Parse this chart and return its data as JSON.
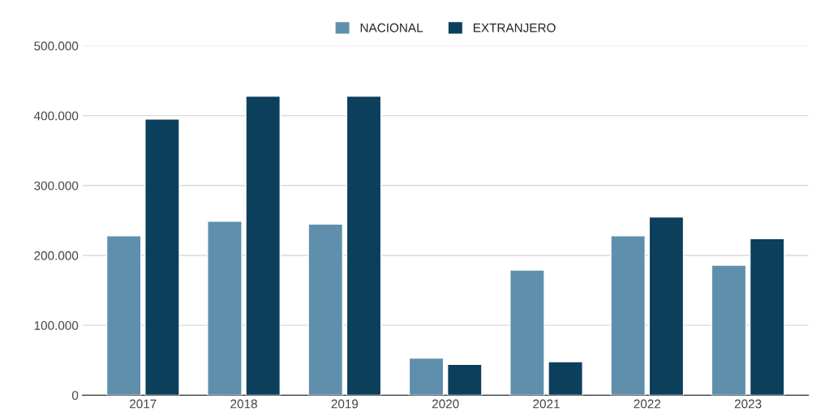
{
  "chart_data": {
    "type": "bar",
    "categories": [
      "2017",
      "2018",
      "2019",
      "2020",
      "2021",
      "2022",
      "2023"
    ],
    "series": [
      {
        "name": "NACIONAL",
        "color": "#5f8fac",
        "values": [
          228000,
          249000,
          245000,
          53000,
          179000,
          228000,
          186000
        ]
      },
      {
        "name": "EXTRANJERO",
        "color": "#0c3f5c",
        "values": [
          395000,
          428000,
          428000,
          44000,
          48000,
          255000,
          224000
        ]
      }
    ],
    "ylim": [
      0,
      500000
    ],
    "yticks": [
      {
        "value": 0,
        "label": "0"
      },
      {
        "value": 100000,
        "label": "100.000"
      },
      {
        "value": 200000,
        "label": "200.000"
      },
      {
        "value": 300000,
        "label": "300.000"
      },
      {
        "value": 400000,
        "label": "400.000"
      },
      {
        "value": 500000,
        "label": "500.000"
      }
    ],
    "grid": "y",
    "legend": "top"
  }
}
